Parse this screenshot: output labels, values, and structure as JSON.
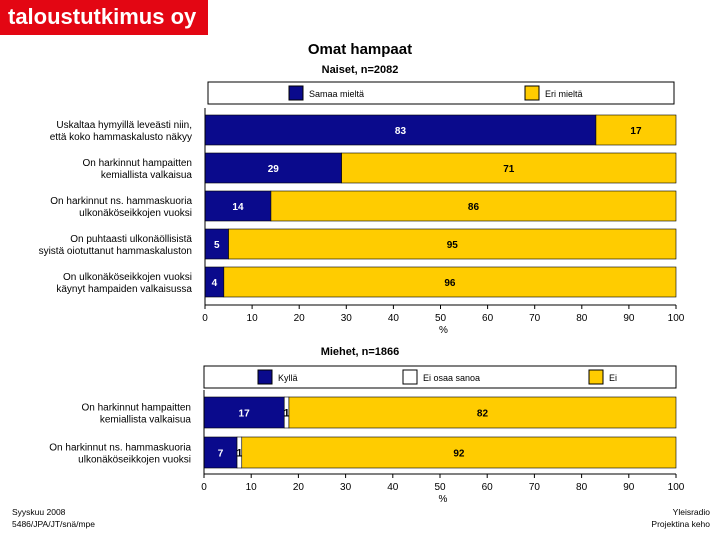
{
  "logo": "taloustutkimus oy",
  "title": "Omat hampaat",
  "footer": {
    "left": [
      "Syyskuu 2008",
      "5486/JPA/JT/snä/mpe"
    ],
    "right": [
      "Yleisradio",
      "Projektina keho"
    ]
  },
  "colors": {
    "blue": "#0a0a8c",
    "yellow": "#ffcc00",
    "white": "#ffffff",
    "logo_red": "#e30613"
  },
  "chart_data": [
    {
      "type": "bar",
      "orientation": "horizontal",
      "stacked": true,
      "title": "Naiset, n=2082",
      "xlabel": "%",
      "xlim": [
        0,
        100
      ],
      "xticks": [
        0,
        10,
        20,
        30,
        40,
        50,
        60,
        70,
        80,
        90,
        100
      ],
      "legend_position": "top",
      "categories": [
        [
          "Uskaltaa hymyillä leveästi niin,",
          "että koko hammaskalusto näkyy"
        ],
        [
          "On harkinnut hampaitten",
          "kemiallista valkaisua"
        ],
        [
          "On harkinnut ns. hammaskuoria",
          "ulkonäköseikkojen vuoksi"
        ],
        [
          "On puhtaasti ulkonäöllisistä",
          "syistä oiotuttanut hammaskaluston"
        ],
        [
          "On ulkonäköseikkojen vuoksi",
          "käynyt hampaiden valkaisussa"
        ]
      ],
      "series": [
        {
          "name": "Samaa mieltä",
          "color": "#0a0a8c",
          "values": [
            83,
            29,
            14,
            5,
            4
          ],
          "labels": [
            "83",
            "29",
            "14",
            "5",
            "4"
          ]
        },
        {
          "name": "Eri mieltä",
          "color": "#ffcc00",
          "values": [
            17,
            71,
            86,
            95,
            96
          ],
          "labels": [
            "17",
            "71",
            "86",
            "95",
            "96"
          ]
        }
      ]
    },
    {
      "type": "bar",
      "orientation": "horizontal",
      "stacked": true,
      "title": "Miehet, n=1866",
      "xlabel": "%",
      "xlim": [
        0,
        100
      ],
      "xticks": [
        0,
        10,
        20,
        30,
        40,
        50,
        60,
        70,
        80,
        90,
        100
      ],
      "legend_position": "top",
      "categories": [
        [
          "On harkinnut hampaitten",
          "kemiallista valkaisua"
        ],
        [
          "On harkinnut ns. hammaskuoria",
          "ulkonäköseikkojen vuoksi"
        ]
      ],
      "series": [
        {
          "name": "Kyllä",
          "color": "#0a0a8c",
          "values": [
            17,
            7
          ],
          "labels": [
            "17",
            "7"
          ]
        },
        {
          "name": "Ei osaa sanoa",
          "color": "#ffffff",
          "values": [
            1,
            1
          ],
          "labels": [
            "1",
            "1"
          ]
        },
        {
          "name": "Ei",
          "color": "#ffcc00",
          "values": [
            82,
            92
          ],
          "labels": [
            "82",
            "92"
          ]
        }
      ]
    }
  ]
}
